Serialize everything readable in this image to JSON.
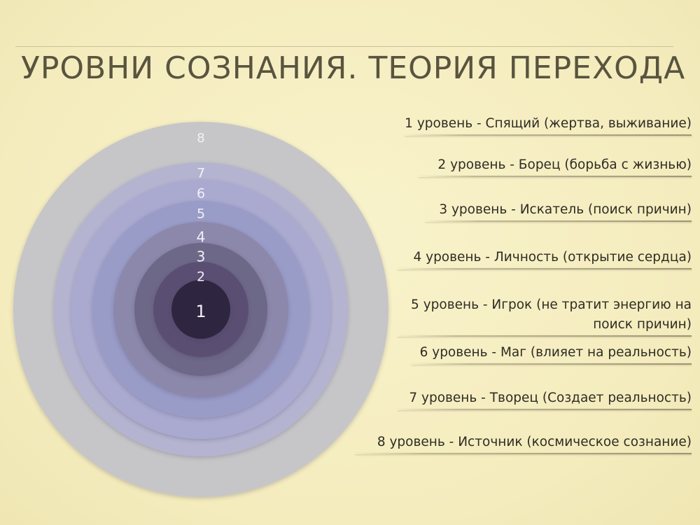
{
  "title": "УРОВНИ СОЗНАНИЯ. ТЕОРИЯ ПЕРЕХОДА",
  "colors": {
    "background": "#f6efc0",
    "title_text": "#59543f",
    "label_text": "#2f2c24",
    "ring_number_text": "#f2f0f8"
  },
  "rings": [
    {
      "level": "1",
      "color": "#2f2540"
    },
    {
      "level": "2",
      "color": "#5a5072"
    },
    {
      "level": "3",
      "color": "#6e6888"
    },
    {
      "level": "4",
      "color": "#8c88ac"
    },
    {
      "level": "5",
      "color": "#9a9cc8"
    },
    {
      "level": "6",
      "color": "#aaaad0"
    },
    {
      "level": "7",
      "color": "#b4b4d0"
    },
    {
      "level": "8",
      "color": "#c6c6c8"
    }
  ],
  "levels": [
    {
      "label": "1 уровень - Спящий (жертва, выживание)"
    },
    {
      "label": "2 уровень - Борец (борьба с жизнью)"
    },
    {
      "label": "3 уровень - Искатель (поиск причин)"
    },
    {
      "label": "4 уровень - Личность (открытие сердца)"
    },
    {
      "label": "5 уровень - Игрок (не тратит энергию на\nпоиск причин)"
    },
    {
      "label": "6 уровень - Маг (влияет на реальность)"
    },
    {
      "label": "7 уровень - Творец (Создает реальность)"
    },
    {
      "label": "8 уровень - Источник (космическое сознание)"
    }
  ]
}
